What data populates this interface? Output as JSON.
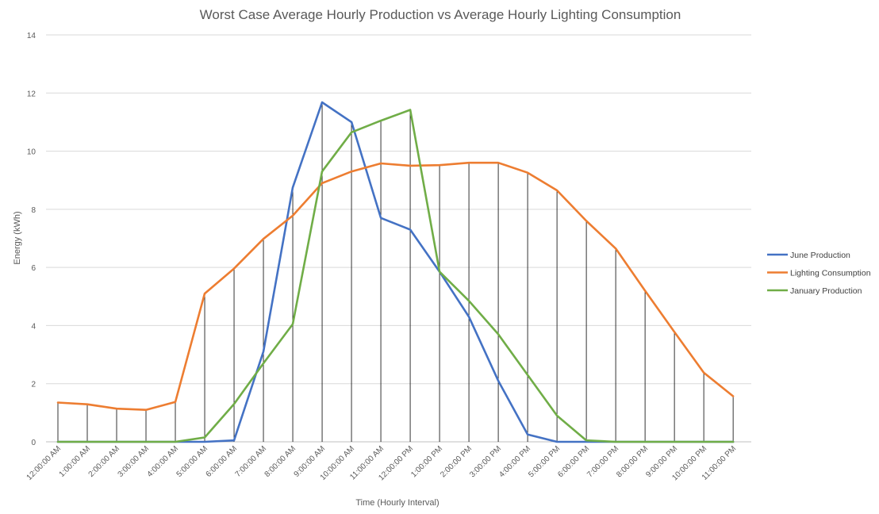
{
  "chart_data": {
    "type": "line",
    "title": "Worst Case Average Hourly Production vs Average Hourly Lighting Consumption",
    "xlabel": "Time (Hourly Interval)",
    "ylabel": "Energy (kWh)",
    "ylim": [
      0,
      14
    ],
    "yticks": [
      0,
      2,
      4,
      6,
      8,
      10,
      12,
      14
    ],
    "grid": true,
    "legend_position": "right",
    "drop_lines": true,
    "categories": [
      "12:00:00 AM",
      "1:00:00 AM",
      "2:00:00 AM",
      "3:00:00 AM",
      "4:00:00 AM",
      "5:00:00 AM",
      "6:00:00 AM",
      "7:00:00 AM",
      "8:00:00 AM",
      "9:00:00 AM",
      "10:00:00 AM",
      "11:00:00 AM",
      "12:00:00 PM",
      "1:00:00 PM",
      "2:00:00 PM",
      "3:00:00 PM",
      "4:00:00 PM",
      "5:00:00 PM",
      "6:00:00 PM",
      "7:00:00 PM",
      "8:00:00 PM",
      "9:00:00 PM",
      "10:00:00 PM",
      "11:00:00 PM"
    ],
    "series": [
      {
        "name": "June Production",
        "color": "#4472c4",
        "values": [
          0,
          0,
          0,
          0,
          0,
          0,
          0.05,
          3.1,
          8.75,
          11.68,
          11,
          7.7,
          7.3,
          5.85,
          4.3,
          2.1,
          0.25,
          0,
          0,
          0,
          0,
          0,
          0,
          0
        ]
      },
      {
        "name": "Lighting Consumption",
        "color": "#ed7d31",
        "values": [
          1.35,
          1.29,
          1.14,
          1.1,
          1.37,
          5.1,
          5.96,
          6.98,
          7.78,
          8.9,
          9.3,
          9.58,
          9.5,
          9.52,
          9.6,
          9.6,
          9.26,
          8.65,
          7.6,
          6.65,
          5.2,
          3.78,
          2.38,
          1.57
        ]
      },
      {
        "name": "January Production",
        "color": "#70ad47",
        "values": [
          0,
          0,
          0,
          0,
          0,
          0.15,
          1.3,
          2.7,
          4.05,
          9.3,
          10.65,
          11.05,
          11.42,
          5.85,
          4.85,
          3.7,
          2.3,
          0.9,
          0.05,
          0,
          0,
          0,
          0,
          0
        ]
      }
    ]
  }
}
